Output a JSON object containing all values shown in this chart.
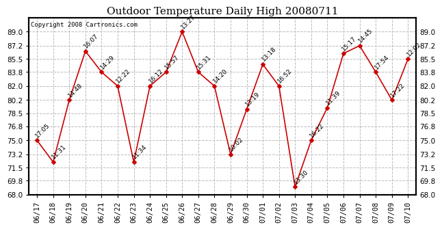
{
  "title": "Outdoor Temperature Daily High 20080711",
  "copyright": "Copyright 2008 Cartronics.com",
  "dates": [
    "06/17",
    "06/18",
    "06/19",
    "06/20",
    "06/21",
    "06/22",
    "06/23",
    "06/24",
    "06/25",
    "06/26",
    "06/27",
    "06/28",
    "06/29",
    "06/30",
    "07/01",
    "07/02",
    "07/03",
    "07/04",
    "07/05",
    "07/06",
    "07/07",
    "07/08",
    "07/09",
    "07/10"
  ],
  "values": [
    75.0,
    72.2,
    80.2,
    86.5,
    83.8,
    82.0,
    72.2,
    82.0,
    83.8,
    89.0,
    83.8,
    82.0,
    73.2,
    79.0,
    84.8,
    82.0,
    69.0,
    75.0,
    79.2,
    86.2,
    87.2,
    83.8,
    80.2,
    85.5
  ],
  "labels": [
    "17:05",
    "11:31",
    "14:48",
    "16:07",
    "14:29",
    "12:22",
    "11:34",
    "16:12",
    "15:57",
    "13:27",
    "15:31",
    "14:20",
    "10:02",
    "13:19",
    "13:18",
    "16:52",
    "13:30",
    "16:22",
    "11:39",
    "15:17",
    "14:45",
    "17:54",
    "17:22",
    "12:02"
  ],
  "line_color": "#cc0000",
  "marker_color": "#cc0000",
  "bg_color": "#ffffff",
  "grid_color": "#bbbbbb",
  "ylim": [
    68.0,
    90.8
  ],
  "yticks": [
    68.0,
    69.8,
    71.5,
    73.2,
    75.0,
    76.8,
    78.5,
    80.2,
    82.0,
    83.8,
    85.5,
    87.2,
    89.0
  ],
  "title_fontsize": 11,
  "label_fontsize": 6.5,
  "tick_fontsize": 7.5,
  "copyright_fontsize": 6.5
}
